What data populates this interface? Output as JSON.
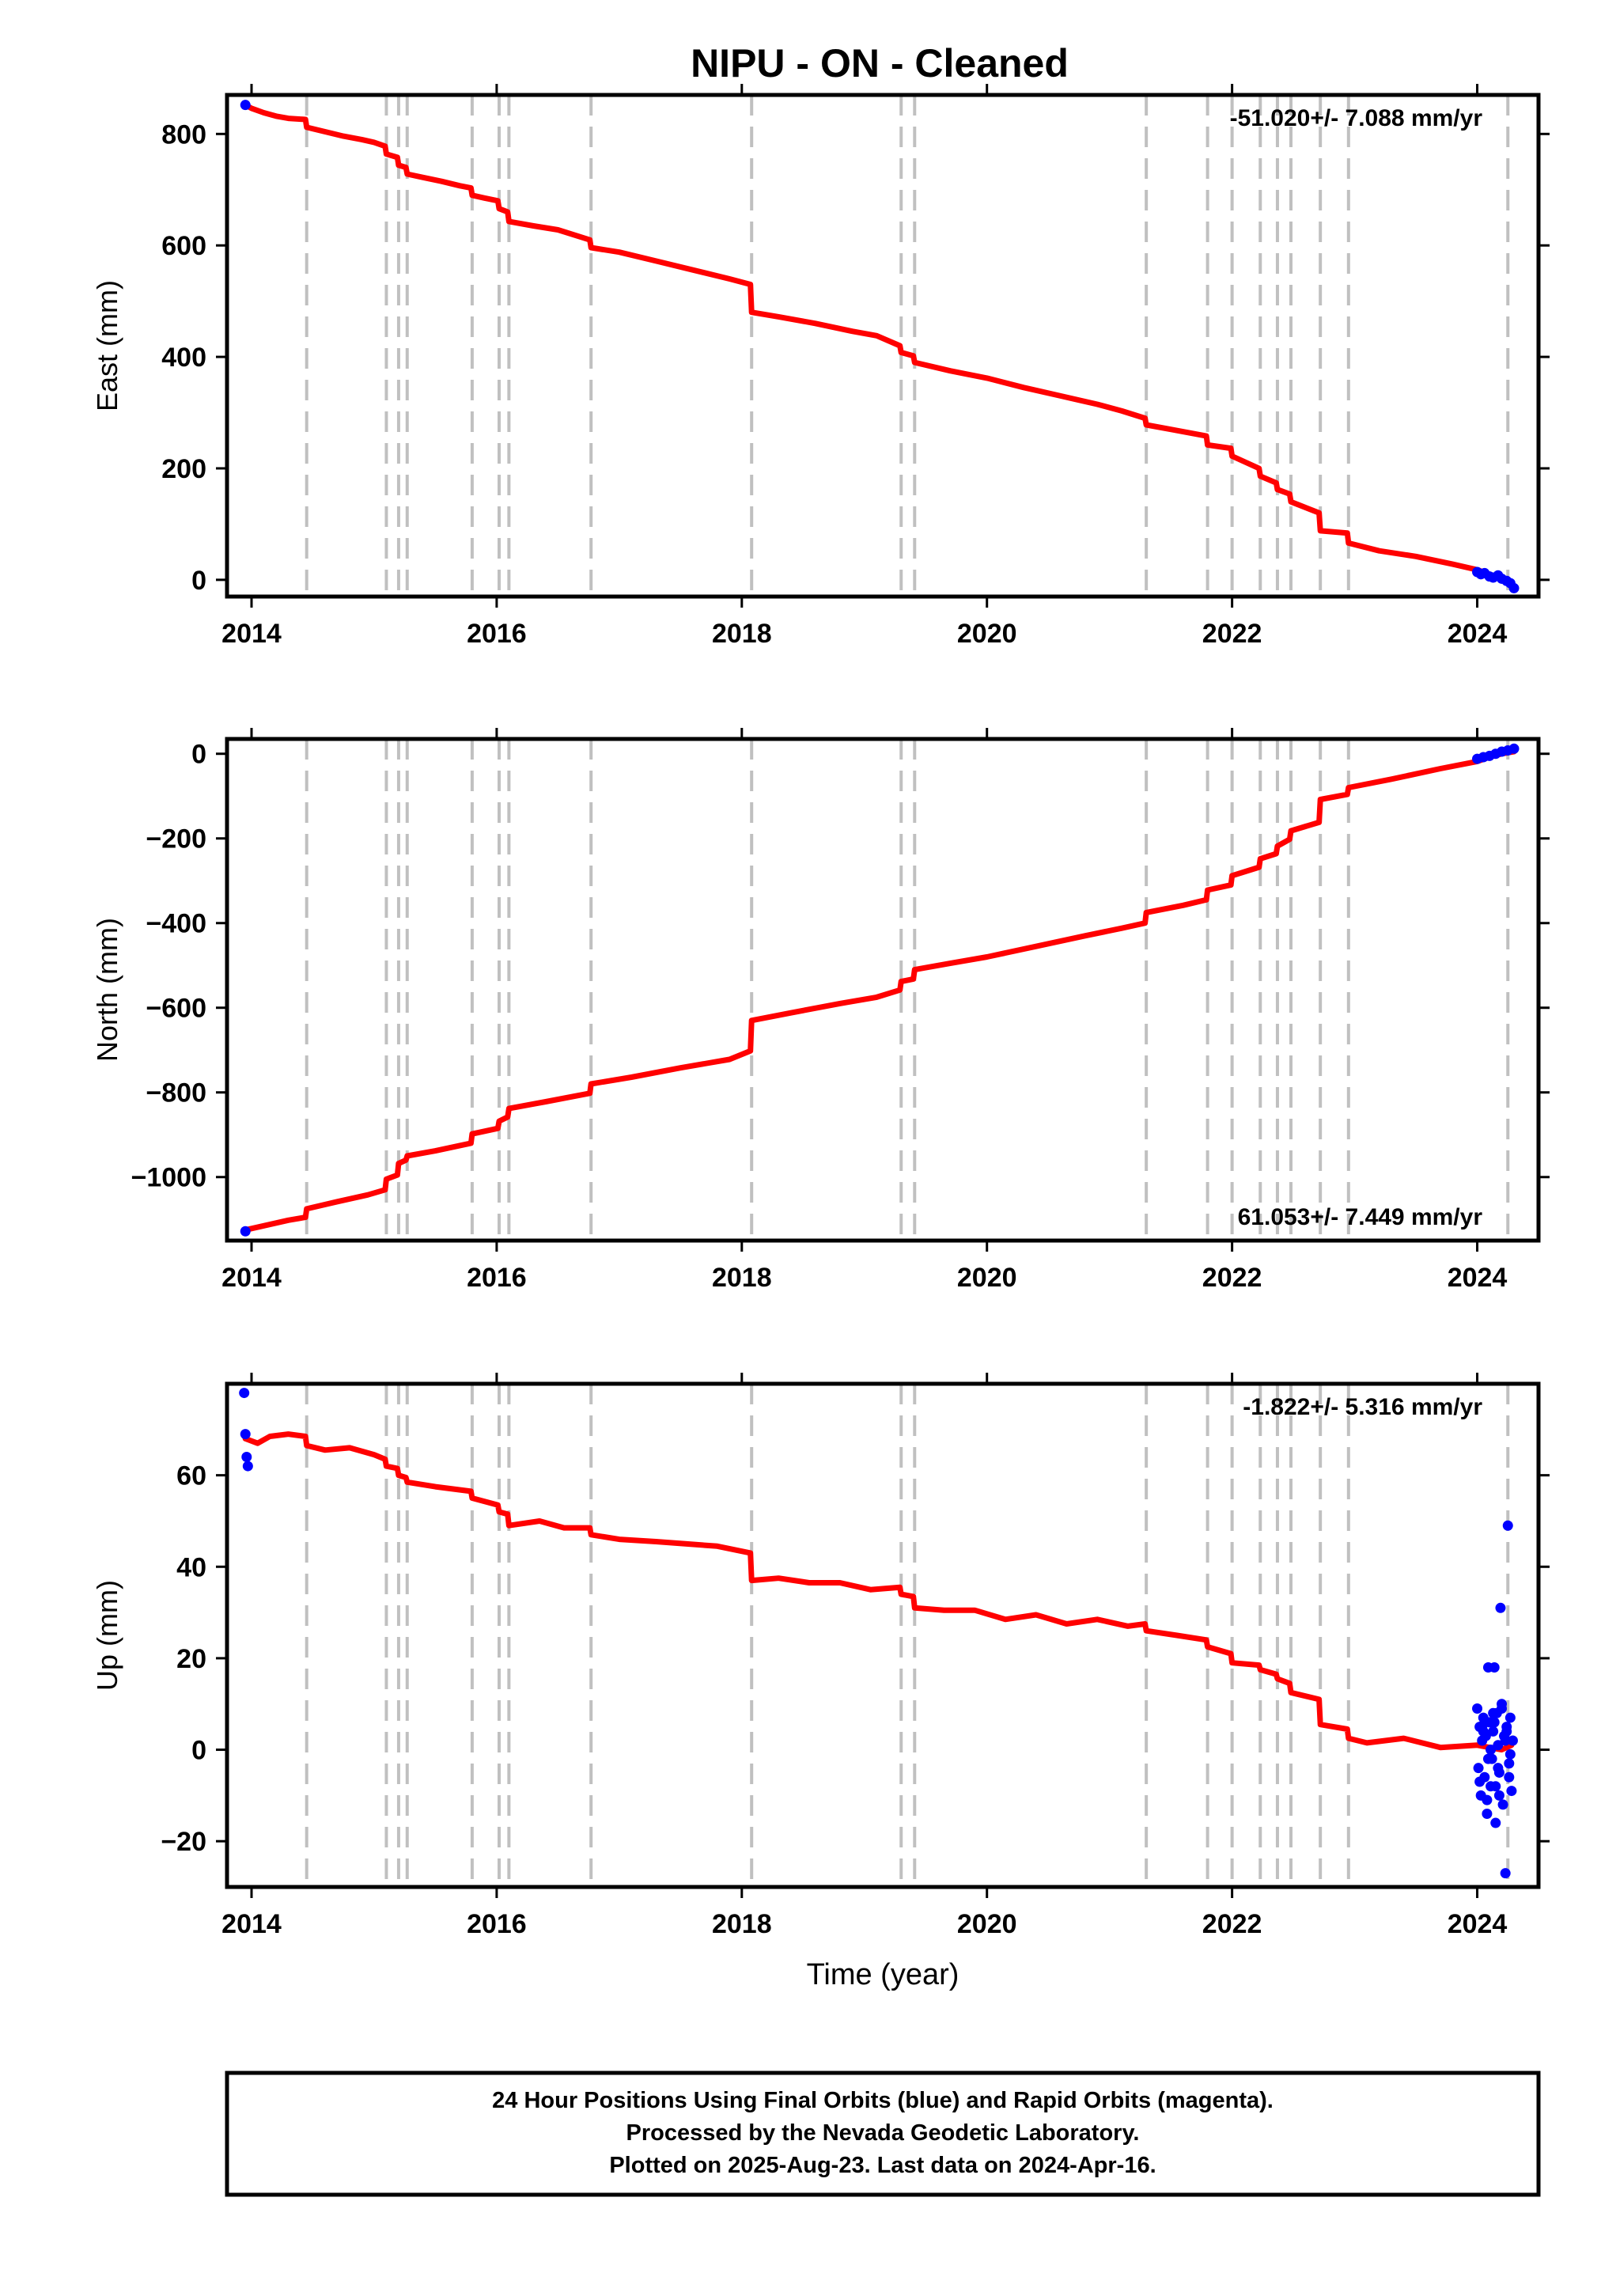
{
  "title": "NIPU  - ON - Cleaned",
  "colors": {
    "model": "#ff0000",
    "final_orbits": "#0000ff",
    "rapid_orbits": "#ff00ff",
    "equipment_change_line": "#c0c0c0",
    "frame": "#000000"
  },
  "footer": {
    "line1": "24 Hour Positions Using Final Orbits (blue) and Rapid Orbits (magenta).",
    "line2": "Processed by the Nevada Geodetic Laboratory.",
    "line3": "Plotted on 2025-Aug-23. Last data on 2024-Apr-16."
  },
  "chart_data": [
    {
      "type": "line",
      "panel": "east",
      "ylabel": "East (mm)",
      "xlabel": "",
      "xlim": [
        2013.8,
        2024.5
      ],
      "ylim": [
        -30,
        870
      ],
      "xticks": [
        2014,
        2016,
        2018,
        2020,
        2022,
        2024
      ],
      "xtick_labels": [
        "2014",
        "2016",
        "2018",
        "2020",
        "2022",
        "2024"
      ],
      "yticks": [
        0,
        200,
        400,
        600,
        800
      ],
      "ytick_labels": [
        "0",
        "200",
        "400",
        "600",
        "800"
      ],
      "rate_label": "-51.020+/- 7.088 mm/yr",
      "rate_position": "top-right",
      "grid": false,
      "equipment_changes": [
        2014.45,
        2015.1,
        2015.2,
        2015.27,
        2015.8,
        2016.02,
        2016.1,
        2016.77,
        2018.08,
        2019.3,
        2019.41,
        2021.3,
        2021.8,
        2022.0,
        2022.23,
        2022.37,
        2022.48,
        2022.72,
        2022.95,
        2024.25
      ],
      "series": [
        {
          "role": "model",
          "x": [
            2013.95,
            2014.0,
            2014.1,
            2014.2,
            2014.3,
            2014.44,
            2014.45,
            2014.6,
            2014.75,
            2014.9,
            2015.0,
            2015.09,
            2015.1,
            2015.19,
            2015.2,
            2015.26,
            2015.27,
            2015.4,
            2015.55,
            2015.7,
            2015.79,
            2015.8,
            2015.9,
            2016.01,
            2016.02,
            2016.09,
            2016.1,
            2016.3,
            2016.5,
            2016.76,
            2016.77,
            2017.0,
            2017.3,
            2017.6,
            2017.9,
            2018.07,
            2018.08,
            2018.3,
            2018.6,
            2018.9,
            2019.1,
            2019.29,
            2019.3,
            2019.4,
            2019.41,
            2019.7,
            2020.0,
            2020.3,
            2020.6,
            2020.9,
            2021.1,
            2021.29,
            2021.3,
            2021.5,
            2021.79,
            2021.8,
            2021.99,
            2022.0,
            2022.22,
            2022.23,
            2022.36,
            2022.37,
            2022.47,
            2022.48,
            2022.71,
            2022.72,
            2022.94,
            2022.95,
            2023.2,
            2023.5,
            2023.8,
            2024.0,
            2024.1,
            2024.2,
            2024.26
          ],
          "y": [
            852,
            846,
            838,
            832,
            828,
            826,
            812,
            804,
            796,
            790,
            785,
            778,
            764,
            758,
            744,
            740,
            728,
            722,
            715,
            707,
            703,
            690,
            685,
            680,
            666,
            660,
            643,
            635,
            628,
            610,
            596,
            588,
            572,
            556,
            540,
            530,
            480,
            472,
            460,
            446,
            438,
            420,
            408,
            402,
            390,
            375,
            362,
            345,
            330,
            315,
            303,
            290,
            278,
            270,
            258,
            242,
            236,
            222,
            200,
            186,
            174,
            162,
            154,
            140,
            120,
            88,
            84,
            66,
            52,
            42,
            28,
            18,
            10,
            2,
            -8
          ]
        },
        {
          "role": "final_orbits",
          "x": [
            2013.95,
            2024.0,
            2024.03,
            2024.06,
            2024.1,
            2024.13,
            2024.17,
            2024.2,
            2024.24,
            2024.27,
            2024.3
          ],
          "y": [
            852,
            14,
            10,
            12,
            6,
            4,
            8,
            2,
            -2,
            -6,
            -15
          ]
        }
      ]
    },
    {
      "type": "line",
      "panel": "north",
      "ylabel": "North (mm)",
      "xlabel": "",
      "xlim": [
        2013.8,
        2024.5
      ],
      "ylim": [
        -1150,
        35
      ],
      "xticks": [
        2014,
        2016,
        2018,
        2020,
        2022,
        2024
      ],
      "xtick_labels": [
        "2014",
        "2016",
        "2018",
        "2020",
        "2022",
        "2024"
      ],
      "yticks": [
        -1000,
        -800,
        -600,
        -400,
        -200,
        0
      ],
      "ytick_labels": [
        "−1000",
        "−800",
        "−600",
        "−400",
        "−200",
        "0"
      ],
      "rate_label": "61.053+/- 7.449 mm/yr",
      "rate_position": "bottom-right",
      "grid": false,
      "equipment_changes": [
        2014.45,
        2015.1,
        2015.2,
        2015.27,
        2015.8,
        2016.02,
        2016.1,
        2016.77,
        2018.08,
        2019.3,
        2019.41,
        2021.3,
        2021.8,
        2022.0,
        2022.23,
        2022.37,
        2022.48,
        2022.72,
        2022.95,
        2024.25
      ],
      "series": [
        {
          "role": "model",
          "x": [
            2013.95,
            2014.1,
            2014.3,
            2014.44,
            2014.45,
            2014.7,
            2014.95,
            2015.09,
            2015.1,
            2015.19,
            2015.2,
            2015.26,
            2015.27,
            2015.5,
            2015.79,
            2015.8,
            2016.01,
            2016.02,
            2016.09,
            2016.1,
            2016.4,
            2016.76,
            2016.77,
            2017.1,
            2017.5,
            2017.9,
            2018.07,
            2018.08,
            2018.4,
            2018.8,
            2019.1,
            2019.29,
            2019.3,
            2019.4,
            2019.41,
            2019.7,
            2020.0,
            2020.4,
            2020.8,
            2021.1,
            2021.29,
            2021.3,
            2021.6,
            2021.79,
            2021.8,
            2021.99,
            2022.0,
            2022.22,
            2022.23,
            2022.36,
            2022.37,
            2022.47,
            2022.48,
            2022.71,
            2022.72,
            2022.94,
            2022.95,
            2023.3,
            2023.7,
            2024.0,
            2024.1,
            2024.2,
            2024.3
          ],
          "y": [
            -1125,
            -1115,
            -1102,
            -1095,
            -1075,
            -1058,
            -1042,
            -1030,
            -1005,
            -995,
            -968,
            -960,
            -950,
            -938,
            -920,
            -898,
            -885,
            -868,
            -858,
            -838,
            -822,
            -802,
            -780,
            -764,
            -742,
            -722,
            -702,
            -630,
            -612,
            -590,
            -575,
            -558,
            -538,
            -532,
            -510,
            -495,
            -480,
            -455,
            -430,
            -412,
            -400,
            -375,
            -358,
            -345,
            -322,
            -310,
            -288,
            -268,
            -248,
            -236,
            -218,
            -202,
            -182,
            -162,
            -108,
            -96,
            -80,
            -60,
            -35,
            -18,
            -8,
            0,
            5
          ]
        },
        {
          "role": "final_orbits",
          "x": [
            2013.95,
            2024.0,
            2024.05,
            2024.1,
            2024.15,
            2024.2,
            2024.25,
            2024.3
          ],
          "y": [
            -1128,
            -12,
            -8,
            -5,
            0,
            5,
            8,
            12
          ]
        }
      ]
    },
    {
      "type": "line",
      "panel": "up",
      "ylabel": "Up (mm)",
      "xlabel": "Time (year)",
      "xlim": [
        2013.8,
        2024.5
      ],
      "ylim": [
        -30,
        80
      ],
      "xticks": [
        2014,
        2016,
        2018,
        2020,
        2022,
        2024
      ],
      "xtick_labels": [
        "2014",
        "2016",
        "2018",
        "2020",
        "2022",
        "2024"
      ],
      "yticks": [
        -20,
        0,
        20,
        40,
        60
      ],
      "ytick_labels": [
        "−20",
        "0",
        "20",
        "40",
        "60"
      ],
      "rate_label": "-1.822+/- 5.316 mm/yr",
      "rate_position": "top-right",
      "grid": false,
      "equipment_changes": [
        2014.45,
        2015.1,
        2015.2,
        2015.27,
        2015.8,
        2016.02,
        2016.1,
        2016.77,
        2018.08,
        2019.3,
        2019.41,
        2021.3,
        2021.8,
        2022.0,
        2022.23,
        2022.37,
        2022.48,
        2022.72,
        2022.95,
        2024.25
      ],
      "series": [
        {
          "role": "model",
          "x": [
            2013.95,
            2014.05,
            2014.15,
            2014.3,
            2014.44,
            2014.45,
            2014.6,
            2014.8,
            2015.0,
            2015.09,
            2015.1,
            2015.19,
            2015.2,
            2015.26,
            2015.27,
            2015.5,
            2015.79,
            2015.8,
            2016.01,
            2016.02,
            2016.09,
            2016.1,
            2016.35,
            2016.55,
            2016.76,
            2016.77,
            2017.0,
            2017.3,
            2017.55,
            2017.8,
            2018.07,
            2018.08,
            2018.3,
            2018.55,
            2018.8,
            2019.05,
            2019.29,
            2019.3,
            2019.4,
            2019.41,
            2019.65,
            2019.9,
            2020.15,
            2020.4,
            2020.65,
            2020.9,
            2021.15,
            2021.29,
            2021.3,
            2021.55,
            2021.79,
            2021.8,
            2021.99,
            2022.0,
            2022.22,
            2022.23,
            2022.36,
            2022.37,
            2022.47,
            2022.48,
            2022.71,
            2022.72,
            2022.94,
            2022.95,
            2023.1,
            2023.4,
            2023.7,
            2024.0,
            2024.2,
            2024.28
          ],
          "y": [
            68,
            67,
            68.5,
            69,
            68.5,
            66.5,
            65.5,
            66,
            64.5,
            63.5,
            62,
            61.5,
            60,
            59.5,
            58.5,
            57.5,
            56.5,
            55,
            53.5,
            52,
            51.5,
            49,
            50,
            48.5,
            48.5,
            47,
            46,
            45.5,
            45,
            44.5,
            43,
            37,
            37.5,
            36.5,
            36.5,
            35,
            35.5,
            34,
            33.5,
            31,
            30.5,
            30.5,
            28.5,
            29.5,
            27.5,
            28.5,
            27,
            27.5,
            26,
            25,
            24,
            22.5,
            21,
            19,
            18.5,
            17.5,
            16.5,
            15.5,
            14.5,
            12.5,
            11,
            5.5,
            4.5,
            2.5,
            1.5,
            2.5,
            0.5,
            1,
            0,
            1
          ]
        },
        {
          "role": "final_orbits",
          "x": [
            2013.94,
            2013.95,
            2013.96,
            2013.97,
            2024.0,
            2024.01,
            2024.02,
            2024.03,
            2024.04,
            2024.05,
            2024.06,
            2024.07,
            2024.08,
            2024.09,
            2024.1,
            2024.11,
            2024.12,
            2024.13,
            2024.14,
            2024.15,
            2024.16,
            2024.17,
            2024.18,
            2024.19,
            2024.2,
            2024.21,
            2024.22,
            2024.23,
            2024.24,
            2024.25,
            2024.26,
            2024.27,
            2024.28,
            2024.29,
            2024.02,
            2024.05,
            2024.08,
            2024.11,
            2024.14,
            2024.17,
            2024.2,
            2024.23,
            2024.26,
            2024.04,
            2024.09,
            2024.13,
            2024.18,
            2024.22,
            2024.27,
            2024.06,
            2024.15,
            2024.24
          ],
          "y": [
            78,
            69,
            64,
            62,
            9,
            -4,
            5,
            -10,
            2,
            7,
            -6,
            3,
            -14,
            18,
            6,
            -8,
            -2,
            4,
            18,
            -16,
            8,
            1,
            -5,
            31,
            10,
            -12,
            3,
            -27,
            5,
            49,
            -3,
            7,
            -9,
            2,
            -7,
            4,
            -11,
            0,
            6,
            -4,
            9,
            2,
            -6,
            5,
            -2,
            8,
            -10,
            3,
            -1,
            6,
            -8,
            4
          ]
        }
      ]
    }
  ]
}
